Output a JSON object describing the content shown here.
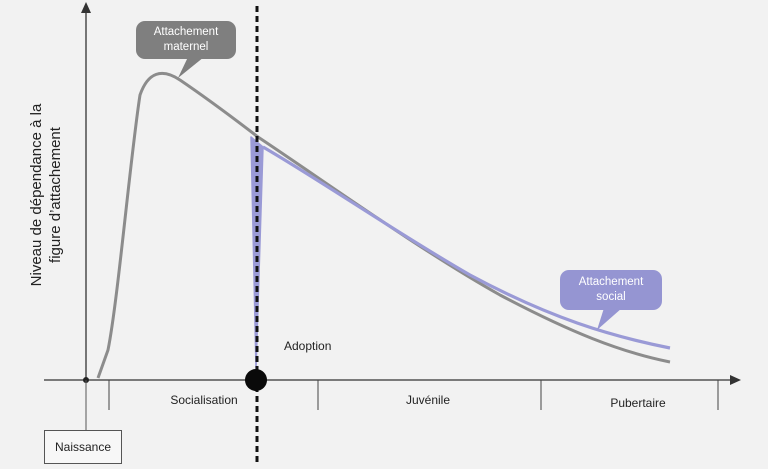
{
  "y_axis_title": {
    "line1": "Niveau de dépendance à la",
    "line2": "figure d’attachement"
  },
  "birth_label": "Naissance",
  "event_label": "Adoption",
  "phases": [
    {
      "id": "socialisation",
      "label": "Socialisation"
    },
    {
      "id": "juvenile",
      "label": "Juvénile"
    },
    {
      "id": "pubertaire",
      "label": "Pubertaire"
    }
  ],
  "callouts": {
    "maternal": {
      "line1": "Attachement",
      "line2": "maternel"
    },
    "social": {
      "line1": "Attachement",
      "line2": "social"
    }
  },
  "colors": {
    "maternal_curve": "#8c8c8c",
    "social_curve": "#9a9ad6",
    "maternal_bubble": "#7f7f7f",
    "social_bubble": "#9595d2",
    "axis": "#333333",
    "background": "#f2f2f2"
  }
}
